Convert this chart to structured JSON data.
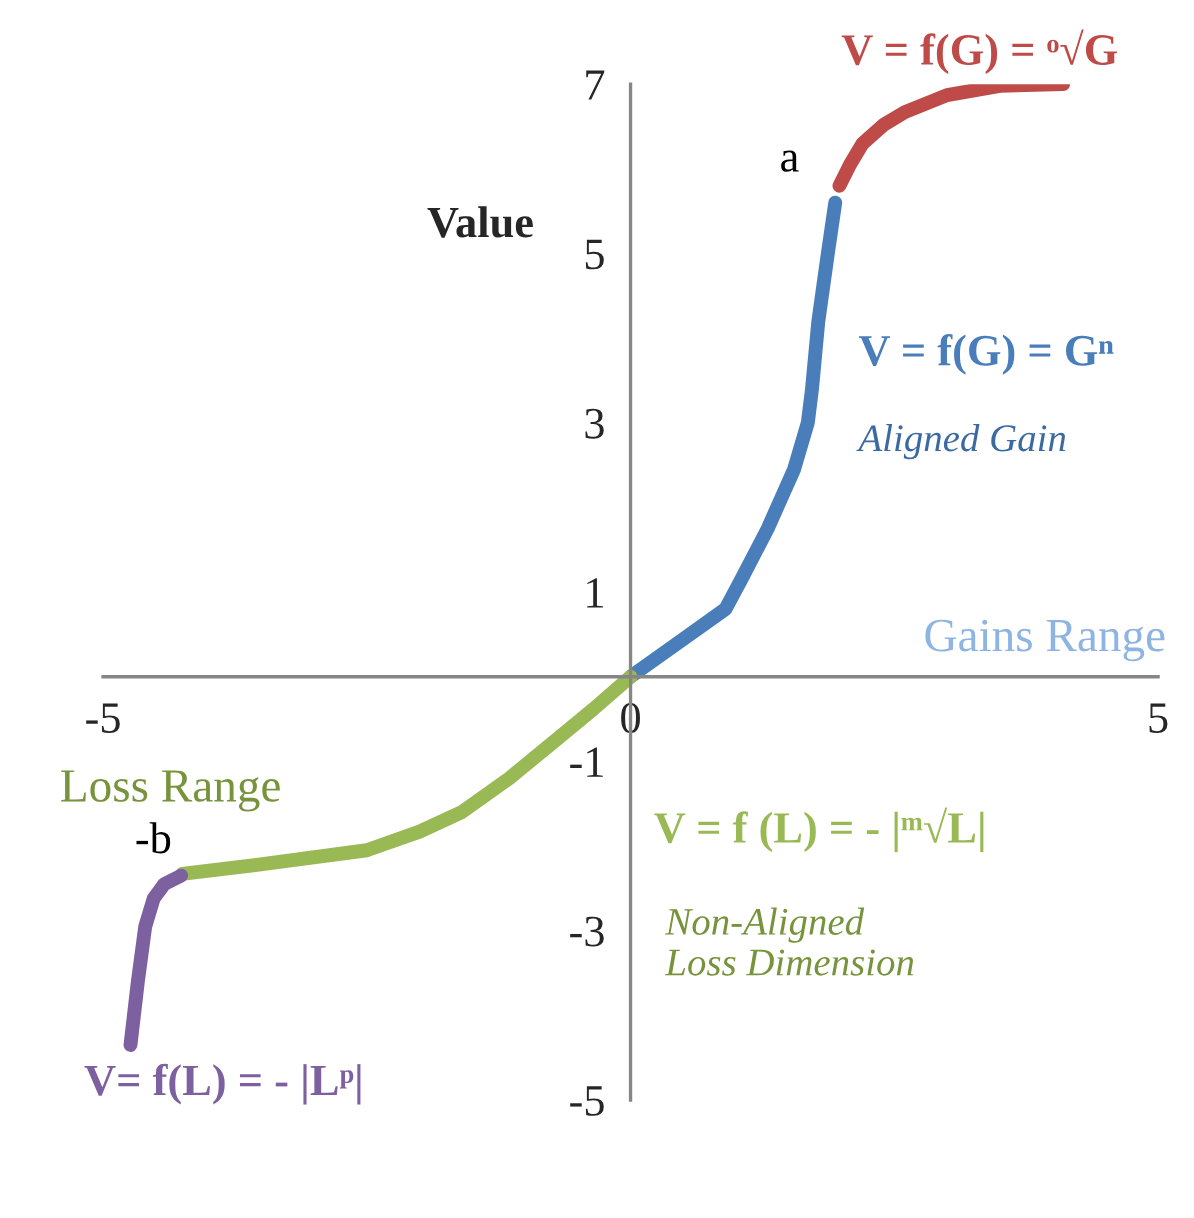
{
  "chart_data": {
    "type": "line",
    "xlim": [
      -5,
      5
    ],
    "xticks": [
      -5,
      0,
      5
    ],
    "ylim": [
      -5,
      7
    ],
    "yticks": [
      -5,
      -3,
      -1,
      1,
      3,
      5,
      7
    ],
    "ylabel": "Value",
    "line_style": "solid",
    "series": [
      {
        "name": "V = f(G) = Gⁿ",
        "color": "#4a7ebb",
        "x": [
          0,
          0.45,
          0.9,
          1.05,
          1.3,
          1.55,
          1.68,
          1.72,
          1.78,
          1.87,
          1.94
        ],
        "values": [
          0,
          0.4,
          0.8,
          1.15,
          1.75,
          2.45,
          3.0,
          3.4,
          4.2,
          5.0,
          5.6
        ]
      },
      {
        "name": "V = f(G) = ᵒ√G",
        "color": "#be4b48",
        "x": [
          1.98,
          2.08,
          2.2,
          2.4,
          2.6,
          3.0,
          3.5,
          4.1
        ],
        "values": [
          5.8,
          6.05,
          6.3,
          6.52,
          6.67,
          6.87,
          6.98,
          7.0
        ]
      },
      {
        "name": "V = f (L) = - |ᵐ√L|",
        "color": "#98b954",
        "x": [
          0,
          -0.35,
          -0.7,
          -1.15,
          -1.6,
          -2.0,
          -2.5,
          -3.4,
          -4.25
        ],
        "values": [
          0,
          -0.38,
          -0.74,
          -1.2,
          -1.6,
          -1.83,
          -2.05,
          -2.2,
          -2.33
        ]
      },
      {
        "name": "V= f(L) = - |Lᵖ|",
        "color": "#7d60a0",
        "x": [
          -4.26,
          -4.42,
          -4.52,
          -4.6,
          -4.67,
          -4.74
        ],
        "values": [
          -2.35,
          -2.45,
          -2.62,
          -2.95,
          -3.6,
          -4.35
        ]
      }
    ],
    "annotations": [
      {
        "text": "a",
        "x": 1.98,
        "y": 5.8
      },
      {
        "text": "-b",
        "x": -4.26,
        "y": -2.35
      },
      "Aligned Gain",
      "Gains Range",
      "Loss Range",
      "Non-Aligned\nLoss Dimension"
    ]
  }
}
